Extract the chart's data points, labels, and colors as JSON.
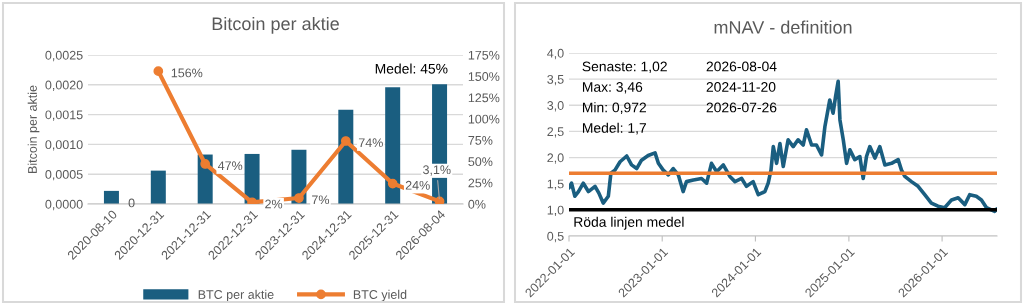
{
  "chart_data": [
    {
      "type": "bar",
      "title": "Bitcoin per aktie",
      "ylabel": "Bitcoin per aktie",
      "categories": [
        "2020-08-10",
        "2020-12-31",
        "2021-12-31",
        "2022-12-31",
        "2023-12-31",
        "2024-12-31",
        "2025-12-31",
        "2026-08-04"
      ],
      "series": [
        {
          "name": "BTC per aktie",
          "type": "bar",
          "color": "#1a5e80",
          "values": [
            0.00022,
            0.00056,
            0.00083,
            0.00084,
            0.00091,
            0.00158,
            0.00196,
            0.00201
          ]
        },
        {
          "name": "BTC yield",
          "type": "line",
          "axis": "y2",
          "color": "#ed7d31",
          "values": [
            null,
            156,
            47,
            2,
            7,
            74,
            24,
            3.1
          ],
          "value_labels": [
            null,
            "156%",
            "47%",
            "2%",
            "7%",
            "74%",
            "24%",
            "3,1%"
          ]
        }
      ],
      "ylim": [
        0,
        0.0025
      ],
      "yticks": [
        {
          "value": 0,
          "label": "0,0000"
        },
        {
          "value": 0.0005,
          "label": "0,0005"
        },
        {
          "value": 0.001,
          "label": "0,0010"
        },
        {
          "value": 0.0015,
          "label": "0,0015"
        },
        {
          "value": 0.002,
          "label": "0,0020"
        },
        {
          "value": 0.0025,
          "label": "0,0025"
        }
      ],
      "y2lim": [
        0,
        175
      ],
      "y2ticks": [
        {
          "value": 0,
          "label": "0%"
        },
        {
          "value": 25,
          "label": "25%"
        },
        {
          "value": 50,
          "label": "50%"
        },
        {
          "value": 75,
          "label": "75%"
        },
        {
          "value": 100,
          "label": "100%"
        },
        {
          "value": 125,
          "label": "125%"
        },
        {
          "value": 150,
          "label": "150%"
        },
        {
          "value": 175,
          "label": "175%"
        }
      ],
      "annotations": [
        {
          "text": "0",
          "x": "2020-08-10",
          "y": 0
        },
        "Medel: 45%"
      ],
      "grid": "y",
      "legend": "bottom",
      "marker": "circle"
    },
    {
      "type": "line",
      "title": "mNAV - definition",
      "x": [
        "2022-01-01",
        "2022-01-11",
        "2022-01-24",
        "2022-02-07",
        "2022-02-26",
        "2022-03-18",
        "2022-04-13",
        "2022-04-28",
        "2022-05-15",
        "2022-06-04",
        "2022-06-14",
        "2022-06-30",
        "2022-07-20",
        "2022-08-15",
        "2022-09-03",
        "2022-09-23",
        "2022-10-12",
        "2022-11-07",
        "2022-12-04",
        "2022-12-17",
        "2023-01-05",
        "2023-01-25",
        "2023-02-13",
        "2023-03-05",
        "2023-03-24",
        "2023-04-06",
        "2023-05-03",
        "2023-06-04",
        "2023-06-24",
        "2023-07-13",
        "2023-08-02",
        "2023-08-28",
        "2023-09-23",
        "2023-10-13",
        "2023-11-08",
        "2023-11-27",
        "2023-12-23",
        "2024-01-12",
        "2024-02-07",
        "2024-02-20",
        "2024-03-02",
        "2024-03-11",
        "2024-03-24",
        "2024-04-06",
        "2024-04-19",
        "2024-05-08",
        "2024-05-28",
        "2024-06-16",
        "2024-07-06",
        "2024-07-19",
        "2024-08-08",
        "2024-08-27",
        "2024-09-16",
        "2024-09-29",
        "2024-10-18",
        "2024-10-31",
        "2024-11-10",
        "2024-11-20",
        "2024-11-27",
        "2024-12-10",
        "2024-12-23",
        "2025-01-05",
        "2025-01-24",
        "2025-02-13",
        "2025-02-26",
        "2025-03-11",
        "2025-03-24",
        "2025-04-13",
        "2025-05-02",
        "2025-05-22",
        "2025-06-17",
        "2025-07-13",
        "2025-07-26",
        "2025-08-08",
        "2025-09-03",
        "2025-09-29",
        "2025-10-25",
        "2025-11-20",
        "2025-12-16",
        "2026-01-11",
        "2026-02-07",
        "2026-03-05",
        "2026-03-31",
        "2026-04-19",
        "2026-05-15",
        "2026-06-04",
        "2026-06-24",
        "2026-07-26",
        "2026-08-04"
      ],
      "series": [
        {
          "color": "#1a5e80",
          "values": [
            1.42,
            1.51,
            1.26,
            1.35,
            1.51,
            1.35,
            1.45,
            1.32,
            1.13,
            1.26,
            1.7,
            1.76,
            1.92,
            2.03,
            1.86,
            1.79,
            1.95,
            2.04,
            2.09,
            1.89,
            1.76,
            1.67,
            1.79,
            1.67,
            1.35,
            1.54,
            1.57,
            1.6,
            1.51,
            1.89,
            1.73,
            1.86,
            1.64,
            1.54,
            1.6,
            1.45,
            1.54,
            1.29,
            1.35,
            1.51,
            1.76,
            2.21,
            1.89,
            2.27,
            1.83,
            2.34,
            2.21,
            2.34,
            2.24,
            2.53,
            2.24,
            2.24,
            2.05,
            2.59,
            3.1,
            2.85,
            3.17,
            3.46,
            2.72,
            2.34,
            1.89,
            2.15,
            1.96,
            2.02,
            1.6,
            2.02,
            2.21,
            1.99,
            2.21,
            1.86,
            1.89,
            1.96,
            1.76,
            1.64,
            1.54,
            1.45,
            1.29,
            1.13,
            1.07,
            1.04,
            1.19,
            1.23,
            1.1,
            1.29,
            1.26,
            1.19,
            1.04,
            0.972,
            1.02
          ]
        }
      ],
      "xlim": [
        "2022-01-01",
        "2026-08-04"
      ],
      "xticks": [
        "2022-01-01",
        "2023-01-01",
        "2024-01-01",
        "2025-01-01",
        "2026-01-01"
      ],
      "ylim": [
        0.5,
        4.0
      ],
      "yticks": [
        {
          "value": 0.5,
          "label": "0,5"
        },
        {
          "value": 1.0,
          "label": "1,0"
        },
        {
          "value": 1.5,
          "label": "1,5"
        },
        {
          "value": 2.0,
          "label": "2,0"
        },
        {
          "value": 2.5,
          "label": "2,5"
        },
        {
          "value": 3.0,
          "label": "3,0"
        },
        {
          "value": 3.5,
          "label": "3,5"
        },
        {
          "value": 4.0,
          "label": "4,0"
        }
      ],
      "ref_lines": [
        {
          "axis": "y",
          "value": 1.7,
          "color": "#ed7d31"
        },
        {
          "axis": "y",
          "value": 1.0,
          "color": "#000000"
        }
      ],
      "annotations": [
        "Senaste: 1,02",
        "2026-08-04",
        "Max: 3,46",
        "2024-11-20",
        "Min: 0,972",
        "2026-07-26",
        "Medel: 1,7",
        "Röda linjen medel"
      ],
      "grid": "y",
      "marker": "none"
    }
  ]
}
